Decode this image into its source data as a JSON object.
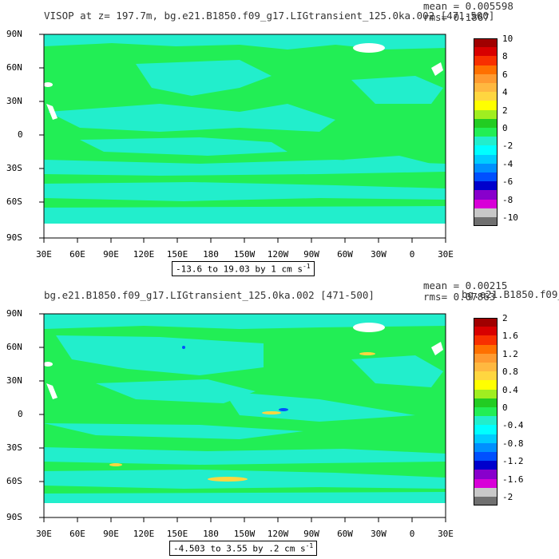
{
  "panels": [
    {
      "title": "VISOP at z= 197.7m, bg.e21.B1850.f09_g17.LIGtransient_125.0ka.002 [471-500]",
      "mean": "mean = 0.005598",
      "rms": "rms= 0.1867",
      "range": "-13.6 to 19.03 by 1 cm s",
      "range_sup": "-1",
      "lat_labels": [
        "90N",
        "60N",
        "30N",
        "0",
        "30S",
        "60S",
        "90S"
      ],
      "lon_labels": [
        "30E",
        "60E",
        "90E",
        "120E",
        "150E",
        "180",
        "150W",
        "120W",
        "90W",
        "60W",
        "30W",
        "0",
        "30E"
      ],
      "colorbar_labels": [
        "10",
        "8",
        "6",
        "4",
        "2",
        "0",
        "-2",
        "-4",
        "-6",
        "-8",
        "-10"
      ]
    },
    {
      "title": "bg.e21.B1850.f09_g17.LIGtransient_125.0ka.002 [471-500]",
      "mean": "mean = 0.00215",
      "rms": "rms= 0.07863",
      "overlap_text": "bg.e21.B1850.f09_g1",
      "range": "-4.503 to 3.55 by .2 cm s",
      "range_sup": "-1",
      "lat_labels": [
        "90N",
        "60N",
        "30N",
        "0",
        "30S",
        "60S",
        "90S"
      ],
      "lon_labels": [
        "30E",
        "60E",
        "90E",
        "120E",
        "150E",
        "180",
        "150W",
        "120W",
        "90W",
        "60W",
        "30W",
        "0",
        "30E"
      ],
      "colorbar_labels": [
        "2",
        "1.6",
        "1.2",
        "0.8",
        "0.4",
        "0",
        "-0.4",
        "-0.8",
        "-1.2",
        "-1.6",
        "-2"
      ]
    }
  ],
  "colors": {
    "ocean_zero": "#22ee55",
    "ocean_neg": "#22eecc",
    "land": "#ffffff",
    "colorbar": [
      "#a00000",
      "#d80000",
      "#f83000",
      "#ff7000",
      "#ff9a30",
      "#ffb840",
      "#ffd640",
      "#ffff00",
      "#a0ee20",
      "#22cc22",
      "#22ee55",
      "#22eecc",
      "#00ffff",
      "#00ccff",
      "#0090ff",
      "#0050ff",
      "#0000cc",
      "#8800cc",
      "#d800d8",
      "#c8c8c8",
      "#707070"
    ]
  }
}
